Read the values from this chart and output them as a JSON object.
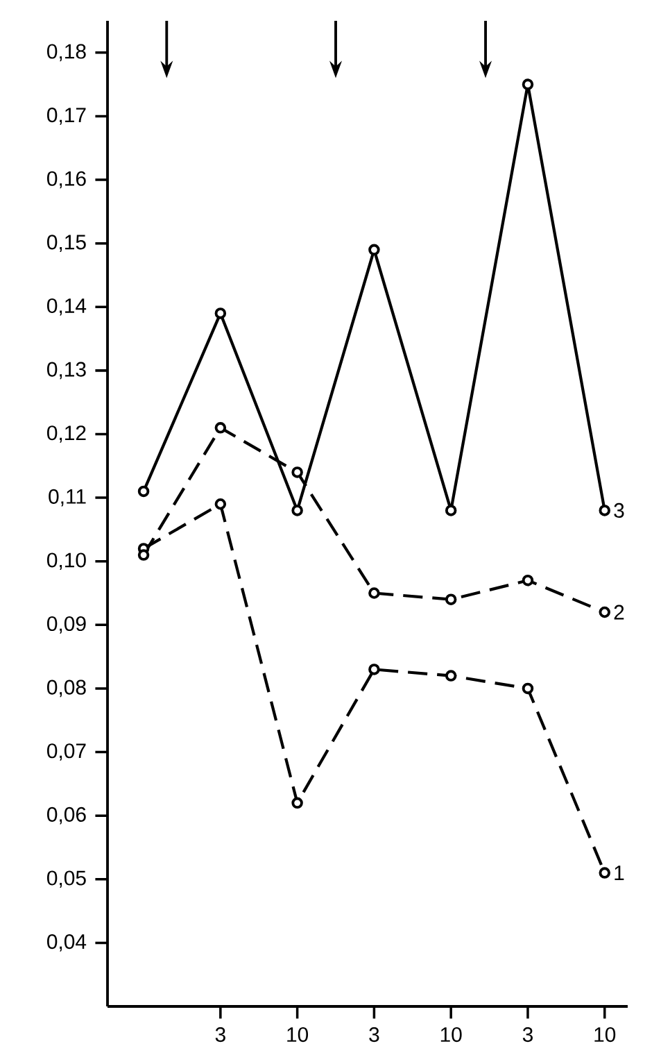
{
  "chart_data": {
    "type": "line",
    "categories": [
      null,
      "3",
      "10",
      "3",
      "10",
      "3",
      "10"
    ],
    "series": [
      {
        "name": "1",
        "color": "#000000",
        "line_style": "dashed",
        "values": [
          0.102,
          0.109,
          0.062,
          0.083,
          0.082,
          0.08,
          0.051
        ]
      },
      {
        "name": "2",
        "color": "#000000",
        "line_style": "dashed",
        "values": [
          0.101,
          0.121,
          0.114,
          0.095,
          0.094,
          0.097,
          0.092
        ]
      },
      {
        "name": "3",
        "color": "#000000",
        "line_style": "solid",
        "values": [
          0.111,
          0.139,
          0.108,
          0.149,
          0.108,
          0.175,
          0.108
        ]
      }
    ],
    "ylim": [
      0.03,
      0.185
    ],
    "yticks": [
      {
        "value": 0.04,
        "label": "0,04"
      },
      {
        "value": 0.05,
        "label": "0,05"
      },
      {
        "value": 0.06,
        "label": "0,06"
      },
      {
        "value": 0.07,
        "label": "0,07"
      },
      {
        "value": 0.08,
        "label": "0,08"
      },
      {
        "value": 0.09,
        "label": "0,09"
      },
      {
        "value": 0.1,
        "label": "0,10"
      },
      {
        "value": 0.11,
        "label": "0,11"
      },
      {
        "value": 0.12,
        "label": "0,12"
      },
      {
        "value": 0.13,
        "label": "0,13"
      },
      {
        "value": 0.14,
        "label": "0,14"
      },
      {
        "value": 0.15,
        "label": "0,15"
      },
      {
        "value": 0.16,
        "label": "0,16"
      },
      {
        "value": 0.17,
        "label": "0,17"
      },
      {
        "value": 0.18,
        "label": "0,18"
      }
    ],
    "grid": false,
    "legend": false,
    "marker": "circle"
  }
}
